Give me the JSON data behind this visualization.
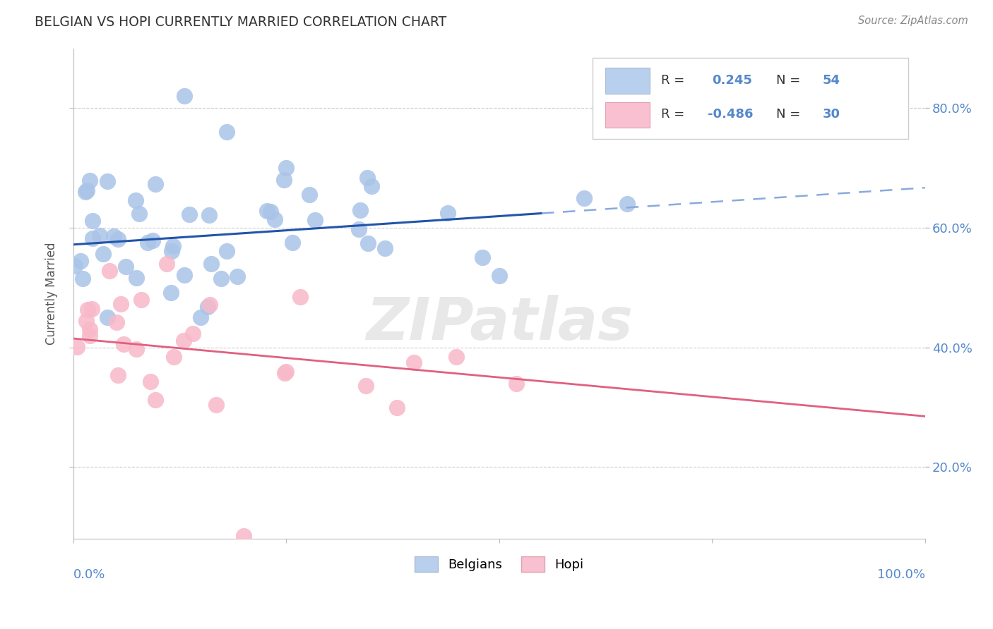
{
  "title": "BELGIAN VS HOPI CURRENTLY MARRIED CORRELATION CHART",
  "source": "Source: ZipAtlas.com",
  "ylabel": "Currently Married",
  "yticks": [
    0.2,
    0.4,
    0.6,
    0.8
  ],
  "ytick_labels": [
    "20.0%",
    "40.0%",
    "60.0%",
    "80.0%"
  ],
  "xlim": [
    0.0,
    1.0
  ],
  "ylim": [
    0.08,
    0.9
  ],
  "legend_blue_r": "0.245",
  "legend_blue_n": "54",
  "legend_pink_r": "-0.486",
  "legend_pink_n": "30",
  "legend_label_blue": "Belgians",
  "legend_label_pink": "Hopi",
  "blue_scatter_color": "#aac4e8",
  "pink_scatter_color": "#f8b8c8",
  "blue_line_color": "#2255AA",
  "pink_line_color": "#E06080",
  "blue_legend_face": "#b8d0ee",
  "pink_legend_face": "#f8c0d0",
  "watermark": "ZIPatlas",
  "blue_line_intercept": 0.572,
  "blue_line_slope": 0.095,
  "blue_line_solid_end": 0.55,
  "pink_line_intercept": 0.415,
  "pink_line_slope": -0.13
}
